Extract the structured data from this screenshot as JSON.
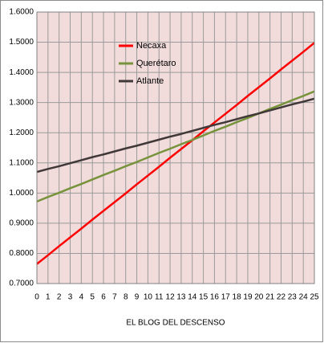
{
  "chart_data": {
    "type": "line",
    "x_label": "EL BLOG DEL DESCENSO",
    "x": [
      0,
      1,
      2,
      3,
      4,
      5,
      6,
      7,
      8,
      9,
      10,
      11,
      12,
      13,
      14,
      15,
      16,
      17,
      18,
      19,
      20,
      21,
      22,
      23,
      24,
      25
    ],
    "series": [
      {
        "name": "Necaxa",
        "color": "#ff0000",
        "values": [
          0.765,
          0.794,
          0.824,
          0.853,
          0.882,
          0.912,
          0.941,
          0.97,
          0.999,
          1.029,
          1.058,
          1.087,
          1.117,
          1.146,
          1.175,
          1.205,
          1.234,
          1.263,
          1.292,
          1.322,
          1.351,
          1.38,
          1.41,
          1.439,
          1.468,
          1.498
        ]
      },
      {
        "name": "Querétaro",
        "color": "#77933c",
        "values": [
          0.972,
          0.987,
          1.001,
          1.016,
          1.03,
          1.045,
          1.06,
          1.074,
          1.089,
          1.103,
          1.118,
          1.133,
          1.147,
          1.162,
          1.176,
          1.191,
          1.206,
          1.22,
          1.235,
          1.249,
          1.264,
          1.279,
          1.293,
          1.308,
          1.322,
          1.337
        ]
      },
      {
        "name": "Atlante",
        "color": "#403838",
        "values": [
          1.07,
          1.08,
          1.089,
          1.099,
          1.109,
          1.119,
          1.128,
          1.138,
          1.148,
          1.157,
          1.167,
          1.177,
          1.187,
          1.196,
          1.206,
          1.216,
          1.226,
          1.235,
          1.245,
          1.255,
          1.264,
          1.274,
          1.284,
          1.294,
          1.303,
          1.313
        ]
      }
    ],
    "xlim": [
      0,
      25
    ],
    "xticks": [
      0,
      1,
      2,
      3,
      4,
      5,
      6,
      7,
      8,
      9,
      10,
      11,
      12,
      13,
      14,
      15,
      16,
      17,
      18,
      19,
      20,
      21,
      22,
      23,
      24,
      25
    ],
    "ylim": [
      0.7,
      1.6
    ],
    "yticks": [
      {
        "value": 0.7,
        "label": "0.7000"
      },
      {
        "value": 0.8,
        "label": "0.8000"
      },
      {
        "value": 0.9,
        "label": "0.9000"
      },
      {
        "value": 1.0,
        "label": "1.0000"
      },
      {
        "value": 1.1,
        "label": "1.1000"
      },
      {
        "value": 1.2,
        "label": "1.2000"
      },
      {
        "value": 1.3,
        "label": "1.3000"
      },
      {
        "value": 1.4,
        "label": "1.4000"
      },
      {
        "value": 1.5,
        "label": "1.5000"
      },
      {
        "value": 1.6,
        "label": "1.6000"
      }
    ],
    "grid": true
  }
}
